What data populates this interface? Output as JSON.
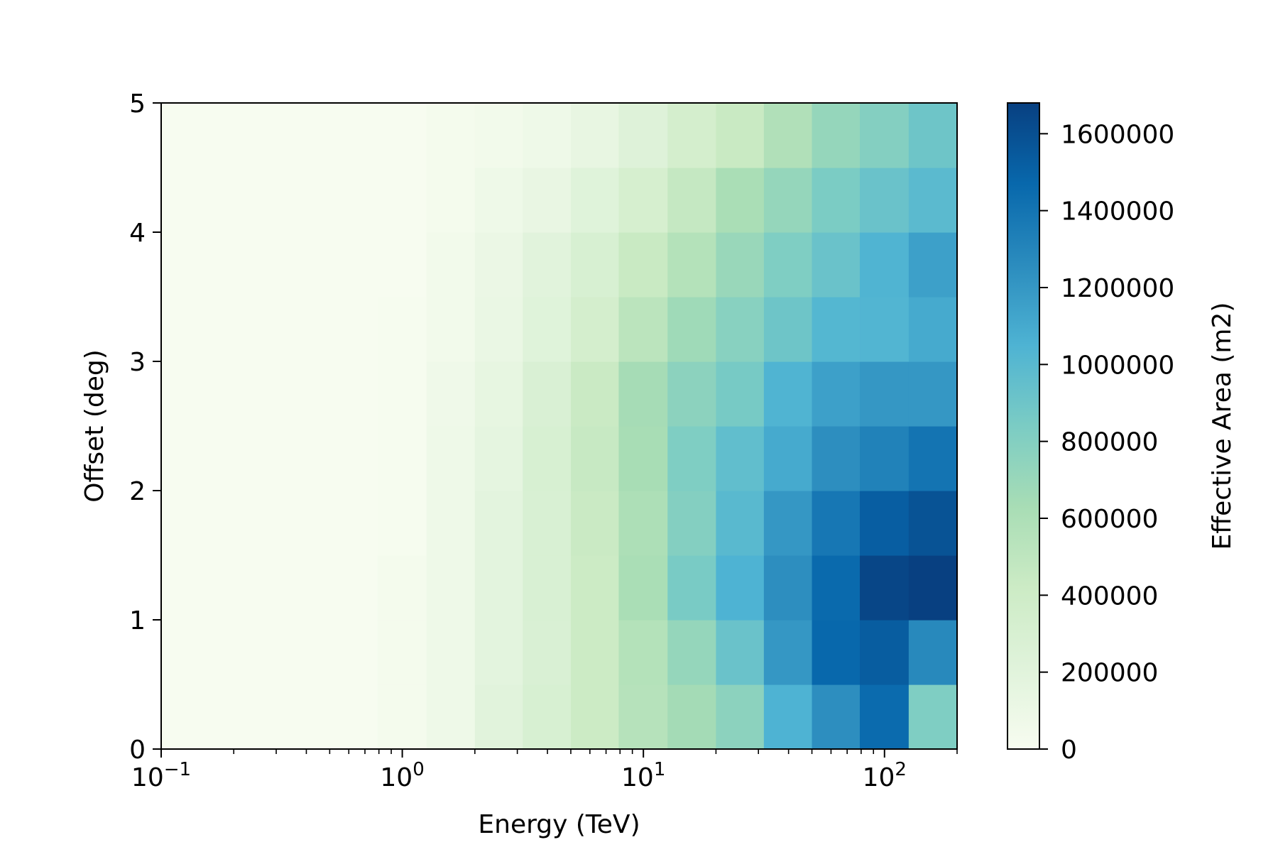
{
  "chart_data": {
    "type": "heatmap",
    "xlabel": "Energy (TeV)",
    "ylabel": "Offset (deg)",
    "x_scale": "log",
    "xlim": [
      0.1,
      200
    ],
    "ylim": [
      0,
      5
    ],
    "x_ticks": [
      {
        "value": 0.1,
        "base": "10",
        "exp": "−1"
      },
      {
        "value": 1,
        "base": "10",
        "exp": "0"
      },
      {
        "value": 10,
        "base": "10",
        "exp": "1"
      },
      {
        "value": 100,
        "base": "10",
        "exp": "2"
      }
    ],
    "y_ticks": [
      "0",
      "1",
      "2",
      "3",
      "4",
      "5"
    ],
    "x_edges": [
      0.1,
      0.126,
      0.2,
      0.316,
      0.5,
      0.79,
      1.26,
      2.0,
      3.16,
      5.0,
      7.9,
      12.6,
      20.0,
      31.6,
      50.0,
      79.0,
      126.0,
      200.0
    ],
    "y_edges": [
      0,
      0.5,
      1.0,
      1.5,
      2.0,
      2.5,
      3.0,
      3.5,
      4.0,
      4.5,
      5.0
    ],
    "z": [
      [
        0,
        0,
        0,
        0,
        0,
        30000,
        80000,
        200000,
        300000,
        420000,
        550000,
        650000,
        760000,
        1050000,
        1250000,
        1450000,
        820000
      ],
      [
        0,
        0,
        0,
        0,
        0,
        30000,
        80000,
        180000,
        280000,
        420000,
        560000,
        720000,
        920000,
        1200000,
        1470000,
        1530000,
        1280000
      ],
      [
        0,
        0,
        0,
        0,
        0,
        30000,
        80000,
        180000,
        290000,
        420000,
        620000,
        850000,
        1050000,
        1250000,
        1460000,
        1650000,
        1680000
      ],
      [
        0,
        0,
        0,
        0,
        0,
        10000,
        80000,
        180000,
        290000,
        430000,
        600000,
        800000,
        1000000,
        1200000,
        1380000,
        1520000,
        1580000
      ],
      [
        0,
        0,
        0,
        0,
        0,
        10000,
        80000,
        160000,
        300000,
        450000,
        630000,
        820000,
        960000,
        1100000,
        1250000,
        1320000,
        1400000
      ],
      [
        0,
        0,
        0,
        0,
        0,
        10000,
        70000,
        150000,
        280000,
        430000,
        640000,
        760000,
        860000,
        1040000,
        1150000,
        1200000,
        1200000
      ],
      [
        0,
        0,
        0,
        0,
        0,
        10000,
        50000,
        120000,
        220000,
        340000,
        520000,
        670000,
        780000,
        900000,
        1020000,
        1030000,
        1100000
      ],
      [
        0,
        0,
        0,
        0,
        0,
        0,
        50000,
        110000,
        200000,
        300000,
        440000,
        560000,
        700000,
        820000,
        920000,
        1040000,
        1150000
      ],
      [
        0,
        0,
        0,
        0,
        0,
        0,
        30000,
        80000,
        130000,
        220000,
        320000,
        460000,
        620000,
        720000,
        840000,
        920000,
        990000
      ],
      [
        0,
        0,
        0,
        0,
        0,
        0,
        30000,
        50000,
        80000,
        140000,
        230000,
        340000,
        440000,
        580000,
        720000,
        800000,
        900000
      ]
    ],
    "colorbar": {
      "label": "Effective Area (m2)",
      "min": 0,
      "max": 1680000,
      "ticks": [
        0,
        200000,
        400000,
        600000,
        800000,
        1000000,
        1200000,
        1400000,
        1600000
      ],
      "colormap": "GnBu",
      "stops": [
        "#f7fcf0",
        "#e0f3db",
        "#ccebc5",
        "#a8ddb5",
        "#7bccc4",
        "#4eb3d3",
        "#2b8cbe",
        "#0868ac",
        "#084081"
      ]
    }
  }
}
